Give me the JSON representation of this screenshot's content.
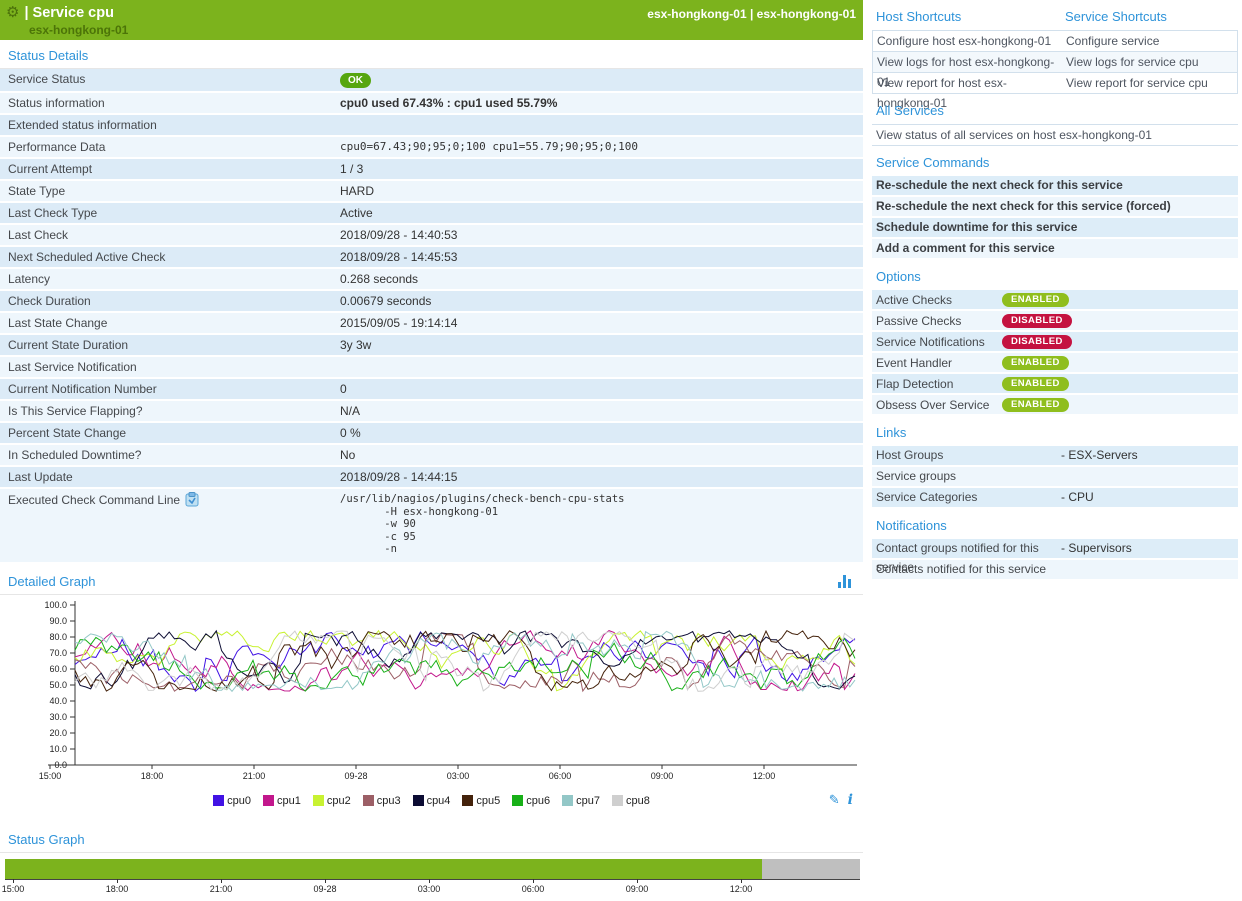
{
  "header": {
    "gear_icon": "⚙",
    "title": "| Service cpu",
    "subtitle": "esx-hongkong-01",
    "right_text": "esx-hongkong-01 | esx-hongkong-01"
  },
  "status_details": {
    "title": "Status Details",
    "rows": [
      {
        "label": "Service Status",
        "value": "OK",
        "type": "badge"
      },
      {
        "label": "Status information",
        "value": "cpu0 used 67.43% : cpu1 used 55.79%",
        "type": "bold"
      },
      {
        "label": "Extended status information",
        "value": "",
        "type": "text"
      },
      {
        "label": "Performance Data",
        "value": "cpu0=67.43;90;95;0;100 cpu1=55.79;90;95;0;100",
        "type": "mono"
      },
      {
        "label": "Current Attempt",
        "value": "1 / 3",
        "type": "text"
      },
      {
        "label": "State Type",
        "value": "HARD",
        "type": "text"
      },
      {
        "label": "Last Check Type",
        "value": "Active",
        "type": "text"
      },
      {
        "label": "Last Check",
        "value": "2018/09/28 - 14:40:53",
        "type": "text"
      },
      {
        "label": "Next Scheduled Active Check",
        "value": "2018/09/28 - 14:45:53",
        "type": "text"
      },
      {
        "label": "Latency",
        "value": "0.268 seconds",
        "type": "text"
      },
      {
        "label": "Check Duration",
        "value": "0.00679 seconds",
        "type": "text"
      },
      {
        "label": "Last State Change",
        "value": "2015/09/05 - 19:14:14",
        "type": "text"
      },
      {
        "label": "Current State Duration",
        "value": "3y 3w",
        "type": "text"
      },
      {
        "label": "Last Service Notification",
        "value": "",
        "type": "text"
      },
      {
        "label": "Current Notification Number",
        "value": "0",
        "type": "text"
      },
      {
        "label": "Is This Service Flapping?",
        "value": "N/A",
        "type": "text"
      },
      {
        "label": "Percent State Change",
        "value": "0 %",
        "type": "text"
      },
      {
        "label": "In Scheduled Downtime?",
        "value": "No",
        "type": "text"
      },
      {
        "label": "Last Update",
        "value": "2018/09/28 - 14:44:15",
        "type": "text"
      },
      {
        "label": "Executed Check Command Line",
        "type": "command",
        "has_copy_icon": true,
        "command_lines": [
          "/usr/lib/nagios/plugins/check-bench-cpu-stats",
          "       -H esx-hongkong-01",
          "       -w 90",
          "       -c 95",
          "       -n"
        ]
      }
    ]
  },
  "shortcuts": {
    "host_title": "Host Shortcuts",
    "service_title": "Service Shortcuts",
    "rows": [
      {
        "host": "Configure host esx-hongkong-01",
        "service": "Configure service"
      },
      {
        "host": "View logs for host esx-hongkong-01",
        "service": "View logs for service cpu"
      },
      {
        "host": "View report for host esx-hongkong-01",
        "service": "View report for service cpu"
      }
    ]
  },
  "all_services": {
    "title": "All Services",
    "row": "View status of all services on host esx-hongkong-01"
  },
  "service_commands": {
    "title": "Service Commands",
    "rows": [
      "Re-schedule the next check for this service",
      "Re-schedule the next check for this service (forced)",
      "Schedule downtime for this service",
      "Add a comment for this service"
    ]
  },
  "options": {
    "title": "Options",
    "rows": [
      {
        "label": "Active Checks",
        "state": "ENABLED"
      },
      {
        "label": "Passive Checks",
        "state": "DISABLED"
      },
      {
        "label": "Service Notifications",
        "state": "DISABLED"
      },
      {
        "label": "Event Handler",
        "state": "ENABLED"
      },
      {
        "label": "Flap Detection",
        "state": "ENABLED"
      },
      {
        "label": "Obsess Over Service",
        "state": "ENABLED"
      }
    ]
  },
  "links": {
    "title": "Links",
    "rows": [
      {
        "label": "Host Groups",
        "value": "- ESX-Servers"
      },
      {
        "label": "Service groups",
        "value": ""
      },
      {
        "label": "Service Categories",
        "value": "- CPU"
      }
    ]
  },
  "notifications": {
    "title": "Notifications",
    "rows": [
      {
        "label": "Contact groups notified for this service",
        "value": "- Supervisors"
      },
      {
        "label": "Contacts notified for this service",
        "value": ""
      }
    ]
  },
  "detailed_graph": {
    "title": "Detailed Graph"
  },
  "status_graph_section": {
    "title": "Status Graph"
  },
  "colors": {
    "header_green": "#7cb31d",
    "header_subtitle": "#4c7408",
    "section_link_blue": "#2e93d9",
    "row_stripe_dark": "#dcebf7",
    "row_stripe_light": "#eef6fc",
    "ok_badge": "#56a60f",
    "enabled_pill": "#8fbe1e",
    "disabled_pill": "#c41240",
    "status_ok_green": "#7cb31d",
    "status_nodata_gray": "#bfbfbf"
  },
  "chart_data": [
    {
      "type": "line",
      "title": "Detailed Graph",
      "xlabel": "",
      "ylabel": "",
      "ylim": [
        0,
        100
      ],
      "grid": false,
      "legend_position": "bottom",
      "y_tick_labels": [
        "0.0",
        "10.0",
        "20.0",
        "30.0",
        "40.0",
        "50.0",
        "60.0",
        "70.0",
        "80.0",
        "90.0",
        "100.0"
      ],
      "x_tick_labels": [
        "15:00",
        "18:00",
        "21:00",
        "09-28",
        "03:00",
        "06:00",
        "09:00",
        "12:00"
      ],
      "series": [
        {
          "name": "cpu0",
          "color": "#4112e4"
        },
        {
          "name": "cpu1",
          "color": "#c2178c"
        },
        {
          "name": "cpu2",
          "color": "#c8f232"
        },
        {
          "name": "cpu3",
          "color": "#9c5f66"
        },
        {
          "name": "cpu4",
          "color": "#0c0c33"
        },
        {
          "name": "cpu5",
          "color": "#44220b"
        },
        {
          "name": "cpu6",
          "color": "#18b018"
        },
        {
          "name": "cpu7",
          "color": "#93c7c7"
        },
        {
          "name": "cpu8",
          "color": "#cfcfcf"
        }
      ],
      "approximation": {
        "note": "nine noisy cpu-usage traces; per-pixel values not labeled, estimated band",
        "band_min": 46,
        "band_max": 84,
        "mean": 63,
        "points_per_series": 150,
        "seed": 42
      }
    },
    {
      "type": "timeline",
      "title": "Status Graph",
      "x_tick_labels": [
        "15:00",
        "18:00",
        "21:00",
        "09-28",
        "03:00",
        "06:00",
        "09:00",
        "12:00"
      ],
      "segments": [
        {
          "state": "ok",
          "color": "#7cb31d",
          "fraction": 0.885
        },
        {
          "state": "no-data",
          "color": "#bfbfbf",
          "fraction": 0.115
        }
      ]
    }
  ]
}
